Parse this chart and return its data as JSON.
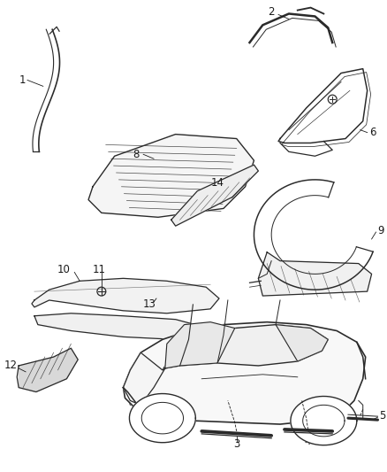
{
  "background_color": "#ffffff",
  "figsize": [
    4.38,
    5.33
  ],
  "dpi": 100,
  "font_size": 8.5,
  "text_color": "#1a1a1a",
  "line_color": "#2a2a2a",
  "line_width": 0.9
}
